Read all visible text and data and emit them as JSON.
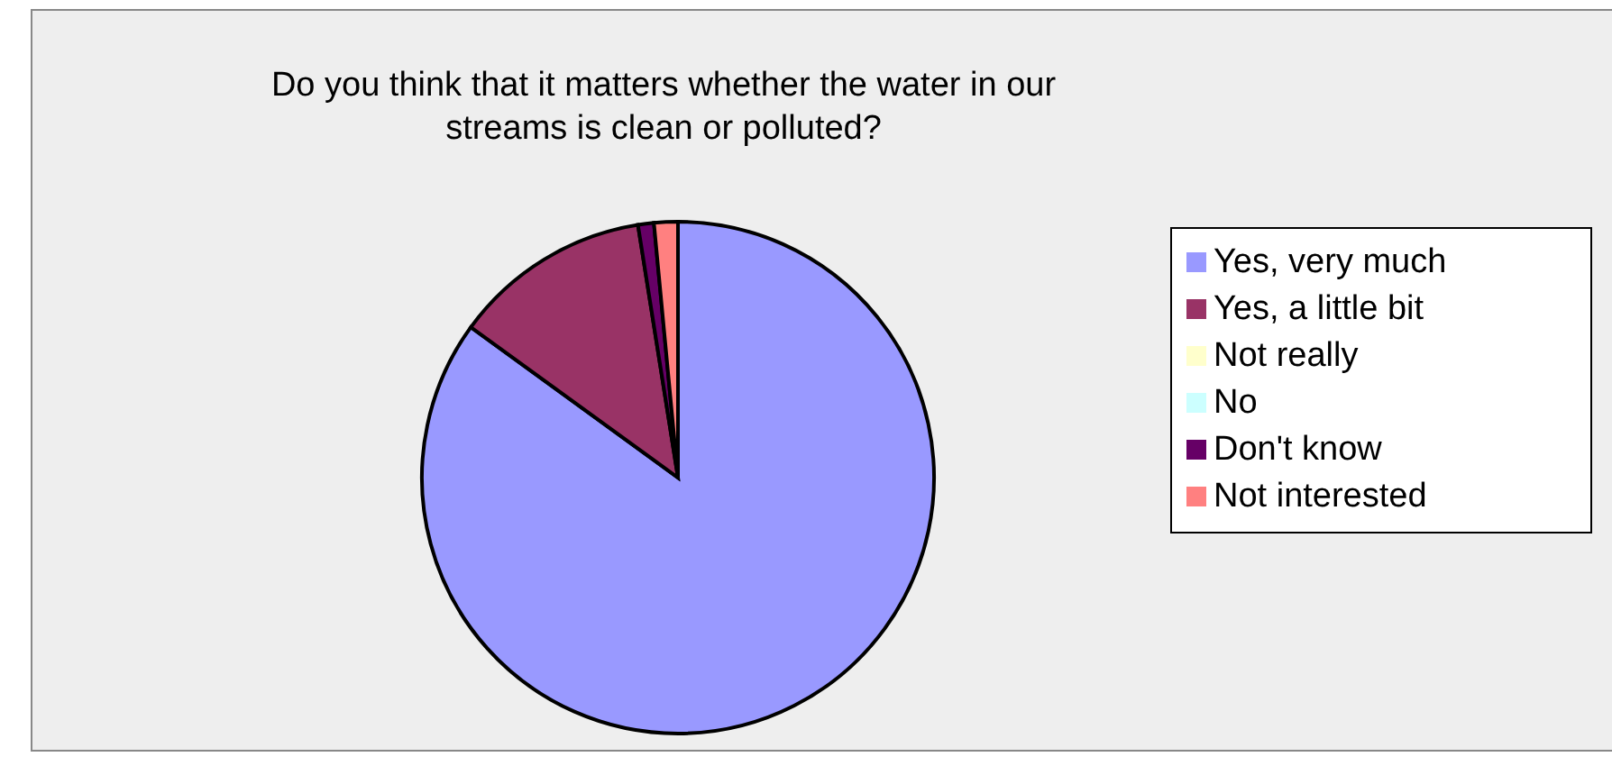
{
  "chart_data": {
    "type": "pie",
    "title": "Do you think that it matters whether the water in our streams is clean or polluted?",
    "categories": [
      "Yes, very much",
      "Yes, a little bit",
      "Not really",
      "No",
      "Don't know",
      "Not interested"
    ],
    "values": [
      85,
      12.5,
      0,
      0,
      1,
      1.5
    ],
    "colors": [
      "#9999ff",
      "#993366",
      "#ffffcc",
      "#ccffff",
      "#660066",
      "#ff8080"
    ],
    "legend": "right"
  }
}
